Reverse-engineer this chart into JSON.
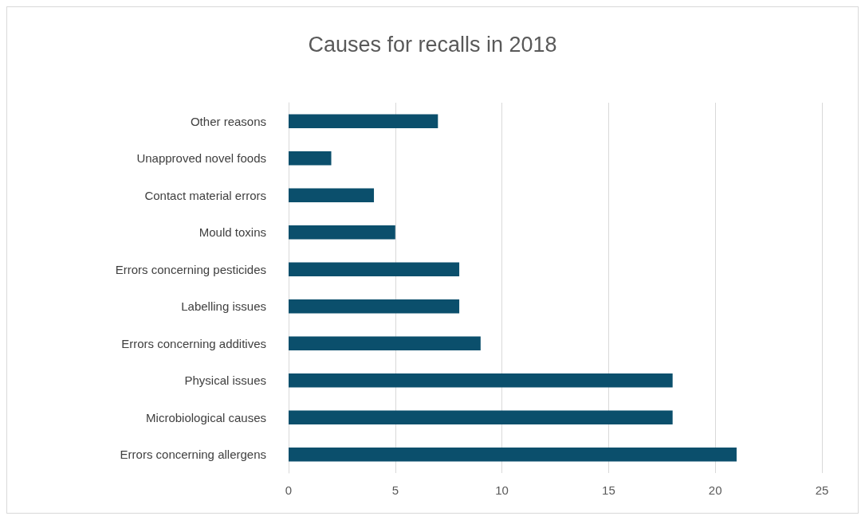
{
  "chart_data": {
    "type": "bar",
    "orientation": "horizontal",
    "title": "Causes for recalls in 2018",
    "categories": [
      "Other reasons",
      "Unapproved novel foods",
      "Contact material errors",
      "Mould toxins",
      "Errors concerning pesticides",
      "Labelling issues",
      "Errors concerning additives",
      "Physical issues",
      "Microbiological causes",
      "Errors concerning allergens"
    ],
    "values": [
      7,
      2,
      4,
      5,
      8,
      8,
      9,
      18,
      18,
      21
    ],
    "color": "#0b4f6c",
    "xlim": [
      0,
      25
    ],
    "xticks": [
      0,
      5,
      10,
      15,
      20,
      25
    ],
    "grid": "x"
  }
}
